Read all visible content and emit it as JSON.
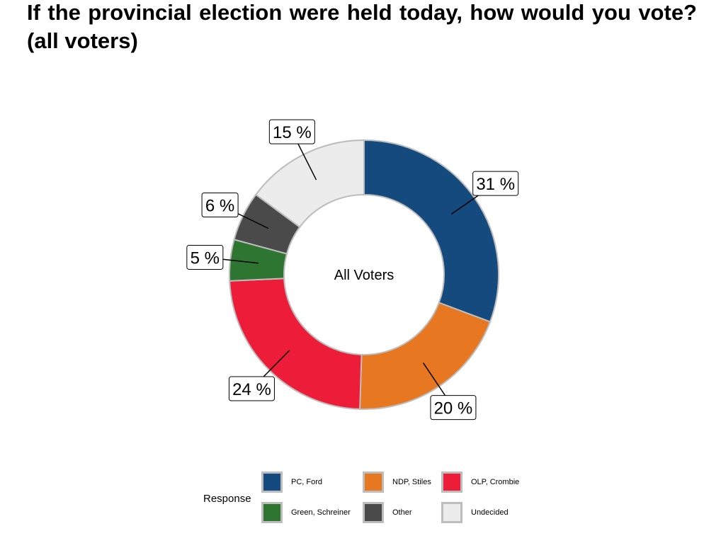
{
  "title": "If the provincial election were held today, how would you vote? (all voters)",
  "chart_data": {
    "type": "pie",
    "donut": true,
    "center_label": "All Voters",
    "legend_title": "Response",
    "legend_position": "bottom",
    "slices": [
      {
        "name": "PC, Ford",
        "value": 31,
        "label": "31 %",
        "color": "#154a7e"
      },
      {
        "name": "NDP, Stiles",
        "value": 20,
        "label": "20 %",
        "color": "#e87722"
      },
      {
        "name": "OLP, Crombie",
        "value": 24,
        "label": "24 %",
        "color": "#ed1c39"
      },
      {
        "name": "Green, Schreiner",
        "value": 5,
        "label": "5 %",
        "color": "#2e7532"
      },
      {
        "name": "Other",
        "value": 6,
        "label": "6 %",
        "color": "#4a4a4a"
      },
      {
        "name": "Undecided",
        "value": 15,
        "label": "15 %",
        "color": "#ebeceb"
      }
    ]
  }
}
